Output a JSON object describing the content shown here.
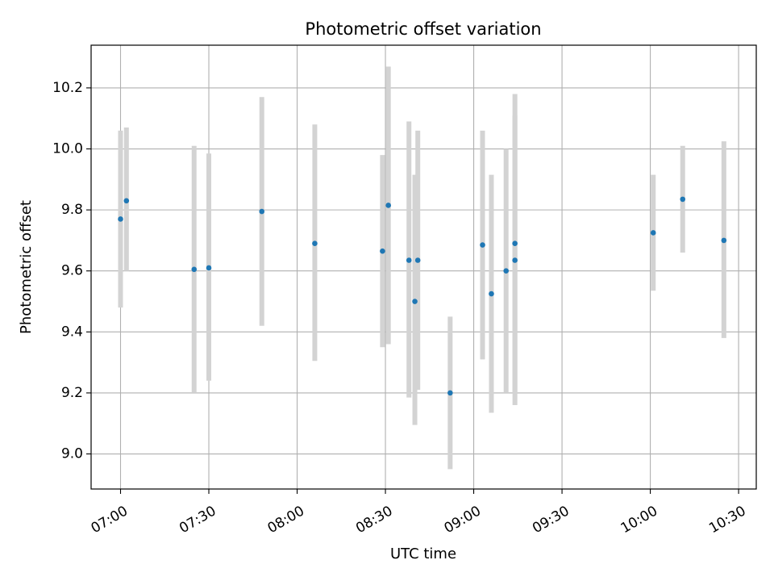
{
  "chart_data": {
    "type": "scatter",
    "title": "Photometric offset variation",
    "xlabel": "UTC time",
    "ylabel": "Photometric offset",
    "xlim": [
      "06:50",
      "10:36"
    ],
    "ylim": [
      8.885,
      10.34
    ],
    "x_ticks": [
      "07:00",
      "07:30",
      "08:00",
      "08:30",
      "09:00",
      "09:30",
      "10:00",
      "10:30"
    ],
    "y_ticks": [
      "9.0",
      "9.2",
      "9.4",
      "9.6",
      "9.8",
      "10.0",
      "10.2"
    ],
    "grid": true,
    "legend": "none",
    "colors": {
      "points": "#1f77b4",
      "error_bars": "#d3d3d3",
      "grid": "#b0b0b0",
      "axes": "#000000"
    },
    "points": [
      {
        "x": "07:00",
        "y": 9.77,
        "err_low": 9.48,
        "err_high": 10.06
      },
      {
        "x": "07:02",
        "y": 9.83,
        "err_low": 9.6,
        "err_high": 10.07
      },
      {
        "x": "07:25",
        "y": 9.605,
        "err_low": 9.2,
        "err_high": 10.01
      },
      {
        "x": "07:30",
        "y": 9.61,
        "err_low": 9.24,
        "err_high": 9.985
      },
      {
        "x": "07:48",
        "y": 9.795,
        "err_low": 9.42,
        "err_high": 10.17
      },
      {
        "x": "08:06",
        "y": 9.69,
        "err_low": 9.305,
        "err_high": 10.08
      },
      {
        "x": "08:29",
        "y": 9.665,
        "err_low": 9.35,
        "err_high": 9.98
      },
      {
        "x": "08:31",
        "y": 9.815,
        "err_low": 9.36,
        "err_high": 10.27
      },
      {
        "x": "08:38",
        "y": 9.635,
        "err_low": 9.185,
        "err_high": 10.09
      },
      {
        "x": "08:40",
        "y": 9.5,
        "err_low": 9.095,
        "err_high": 9.915
      },
      {
        "x": "08:41",
        "y": 9.635,
        "err_low": 9.21,
        "err_high": 10.06
      },
      {
        "x": "08:52",
        "y": 9.2,
        "err_low": 8.95,
        "err_high": 9.45
      },
      {
        "x": "09:03",
        "y": 9.685,
        "err_low": 9.31,
        "err_high": 10.06
      },
      {
        "x": "09:06",
        "y": 9.525,
        "err_low": 9.135,
        "err_high": 9.915
      },
      {
        "x": "09:11",
        "y": 9.6,
        "err_low": 9.2,
        "err_high": 10.0
      },
      {
        "x": "09:14",
        "y": 9.69,
        "err_low": 9.2,
        "err_high": 10.18
      },
      {
        "x": "09:14",
        "y": 9.635,
        "err_low": 9.16,
        "err_high": 10.11
      },
      {
        "x": "10:01",
        "y": 9.725,
        "err_low": 9.535,
        "err_high": 9.915
      },
      {
        "x": "10:11",
        "y": 9.835,
        "err_low": 9.66,
        "err_high": 10.01
      },
      {
        "x": "10:25",
        "y": 9.7,
        "err_low": 9.38,
        "err_high": 10.025
      }
    ]
  }
}
